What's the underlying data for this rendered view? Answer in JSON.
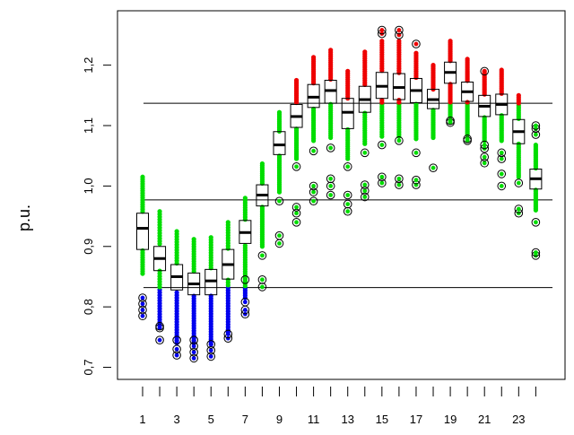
{
  "chart_data": {
    "type": "box",
    "title": "",
    "xlabel": "",
    "ylabel": "p.u.",
    "x_ticks": [
      1,
      2,
      3,
      4,
      5,
      6,
      7,
      8,
      9,
      10,
      11,
      12,
      13,
      14,
      15,
      16,
      17,
      18,
      19,
      20,
      21,
      22,
      23,
      24
    ],
    "x_tick_labels": [
      "1",
      "",
      "3",
      "",
      "5",
      "",
      "7",
      "",
      "9",
      "",
      "11",
      "",
      "13",
      "",
      "15",
      "",
      "17",
      "",
      "19",
      "",
      "21",
      "",
      "23",
      ""
    ],
    "ylim": [
      0.68,
      1.29
    ],
    "y_ticks": [
      0.7,
      0.8,
      0.9,
      1.0,
      1.1,
      1.2
    ],
    "y_tick_labels": [
      "0,7",
      "0,8",
      "0,9",
      "1,0",
      "1,1",
      "1,2"
    ],
    "reference_lines": [
      1.137,
      0.977,
      0.832
    ],
    "grid": false,
    "colors": {
      "low": "#0000ee",
      "mid": "#00dd00",
      "high": "#ee0000",
      "box": "#000000"
    },
    "series": [
      {
        "hour": 1,
        "median": 0.93,
        "q1": 0.895,
        "q3": 0.955,
        "min": 0.855,
        "max": 1.015,
        "outliers": [
          0.785,
          0.795,
          0.805,
          0.815
        ]
      },
      {
        "hour": 2,
        "median": 0.88,
        "q1": 0.86,
        "q3": 0.9,
        "min": 0.77,
        "max": 0.958,
        "outliers": [
          0.745,
          0.765,
          0.768
        ]
      },
      {
        "hour": 3,
        "median": 0.85,
        "q1": 0.828,
        "q3": 0.87,
        "min": 0.74,
        "max": 0.925,
        "outliers": [
          0.72,
          0.73,
          0.745
        ]
      },
      {
        "hour": 4,
        "median": 0.838,
        "q1": 0.82,
        "q3": 0.856,
        "min": 0.74,
        "max": 0.912,
        "outliers": [
          0.715,
          0.725,
          0.735,
          0.745
        ]
      },
      {
        "hour": 5,
        "median": 0.843,
        "q1": 0.82,
        "q3": 0.862,
        "min": 0.738,
        "max": 0.915,
        "outliers": [
          0.718,
          0.728,
          0.738
        ]
      },
      {
        "hour": 6,
        "median": 0.87,
        "q1": 0.846,
        "q3": 0.895,
        "min": 0.758,
        "max": 0.94,
        "outliers": [
          0.748,
          0.755
        ]
      },
      {
        "hour": 7,
        "median": 0.923,
        "q1": 0.905,
        "q3": 0.943,
        "min": 0.815,
        "max": 0.98,
        "outliers": [
          0.788,
          0.795,
          0.808,
          0.845
        ]
      },
      {
        "hour": 8,
        "median": 0.985,
        "q1": 0.967,
        "q3": 1.002,
        "min": 0.9,
        "max": 1.037,
        "outliers": [
          0.833,
          0.845,
          0.885
        ]
      },
      {
        "hour": 9,
        "median": 1.068,
        "q1": 1.052,
        "q3": 1.09,
        "min": 0.99,
        "max": 1.122,
        "outliers": [
          0.905,
          0.918,
          0.975
        ]
      },
      {
        "hour": 10,
        "median": 1.115,
        "q1": 1.097,
        "q3": 1.135,
        "min": 1.045,
        "max": 1.175,
        "outliers": [
          0.94,
          0.955,
          0.965,
          1.032
        ]
      },
      {
        "hour": 11,
        "median": 1.147,
        "q1": 1.13,
        "q3": 1.168,
        "min": 1.075,
        "max": 1.213,
        "outliers": [
          0.975,
          0.99,
          1.0,
          1.058
        ]
      },
      {
        "hour": 12,
        "median": 1.158,
        "q1": 1.137,
        "q3": 1.175,
        "min": 1.08,
        "max": 1.225,
        "outliers": [
          0.985,
          1.0,
          1.012,
          1.063
        ]
      },
      {
        "hour": 13,
        "median": 1.122,
        "q1": 1.095,
        "q3": 1.145,
        "min": 1.045,
        "max": 1.19,
        "outliers": [
          0.958,
          0.97,
          0.985,
          1.032
        ]
      },
      {
        "hour": 14,
        "median": 1.143,
        "q1": 1.122,
        "q3": 1.165,
        "min": 1.07,
        "max": 1.222,
        "outliers": [
          0.982,
          0.992,
          1.002,
          1.055
        ]
      },
      {
        "hour": 15,
        "median": 1.165,
        "q1": 1.145,
        "q3": 1.188,
        "min": 1.082,
        "max": 1.24,
        "outliers": [
          1.005,
          1.015,
          1.068,
          1.252,
          1.258
        ]
      },
      {
        "hour": 16,
        "median": 1.163,
        "q1": 1.143,
        "q3": 1.186,
        "min": 1.082,
        "max": 1.24,
        "outliers": [
          1.002,
          1.012,
          1.075,
          1.25,
          1.258
        ]
      },
      {
        "hour": 17,
        "median": 1.158,
        "q1": 1.138,
        "q3": 1.178,
        "min": 1.078,
        "max": 1.22,
        "outliers": [
          1.002,
          1.01,
          1.055,
          1.235
        ]
      },
      {
        "hour": 18,
        "median": 1.143,
        "q1": 1.128,
        "q3": 1.16,
        "min": 1.08,
        "max": 1.2,
        "outliers": [
          1.03
        ]
      },
      {
        "hour": 19,
        "median": 1.188,
        "q1": 1.17,
        "q3": 1.205,
        "min": 1.115,
        "max": 1.24,
        "outliers": [
          1.105,
          1.108
        ]
      },
      {
        "hour": 20,
        "median": 1.156,
        "q1": 1.14,
        "q3": 1.172,
        "min": 1.085,
        "max": 1.21,
        "outliers": [
          1.075,
          1.078
        ]
      },
      {
        "hour": 21,
        "median": 1.132,
        "q1": 1.115,
        "q3": 1.15,
        "min": 1.075,
        "max": 1.19,
        "outliers": [
          1.038,
          1.048,
          1.062,
          1.068,
          1.19
        ]
      },
      {
        "hour": 22,
        "median": 1.135,
        "q1": 1.118,
        "q3": 1.152,
        "min": 1.075,
        "max": 1.192,
        "outliers": [
          1.0,
          1.02,
          1.045,
          1.055
        ]
      },
      {
        "hour": 23,
        "median": 1.09,
        "q1": 1.07,
        "q3": 1.11,
        "min": 1.015,
        "max": 1.15,
        "outliers": [
          0.955,
          0.962,
          1.005
        ]
      },
      {
        "hour": 24,
        "median": 1.012,
        "q1": 0.995,
        "q3": 1.028,
        "min": 0.96,
        "max": 1.068,
        "outliers": [
          0.885,
          0.89,
          0.94,
          1.085,
          1.095,
          1.1
        ]
      }
    ]
  }
}
